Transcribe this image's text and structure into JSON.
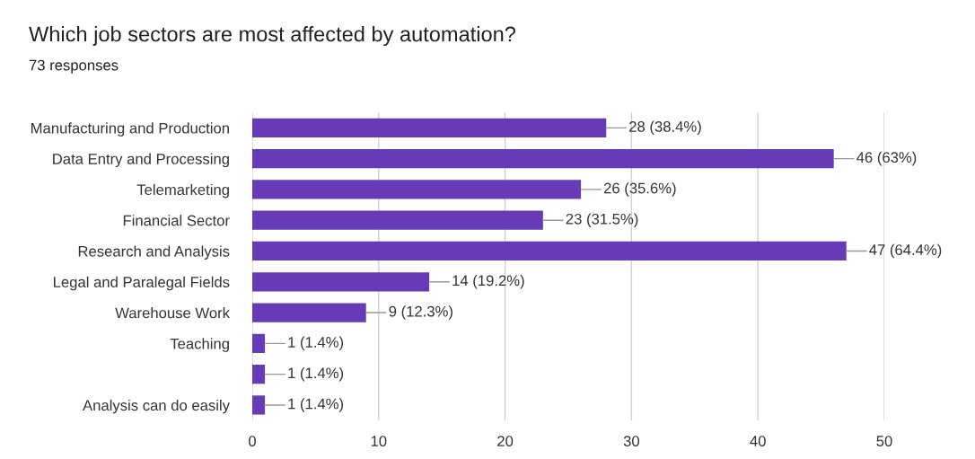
{
  "chart_data": {
    "type": "bar",
    "orientation": "horizontal",
    "title": "Which job sectors are most affected by automation?",
    "subtitle": "73 responses",
    "categories": [
      "Manufacturing and Production",
      "Data Entry and Processing",
      "Telemarketing",
      "Financial Sector",
      "Research and Analysis",
      "Legal and Paralegal Fields",
      "Warehouse Work",
      "Teaching",
      null,
      "Analysis can do easily"
    ],
    "values": [
      28,
      46,
      26,
      23,
      47,
      14,
      9,
      1,
      1,
      1
    ],
    "value_labels": [
      "28 (38.4%)",
      "46 (63%)",
      "26 (35.6%)",
      "23 (31.5%)",
      "47 (64.4%)",
      "14 (19.2%)",
      "9 (12.3%)",
      "1 (1.4%)",
      "1 (1.4%)",
      "1 (1.4%)"
    ],
    "color": "#673ab7",
    "xlim": [
      0,
      50
    ],
    "xticks": [
      0,
      10,
      20,
      30,
      40,
      50
    ],
    "grid": "x"
  }
}
